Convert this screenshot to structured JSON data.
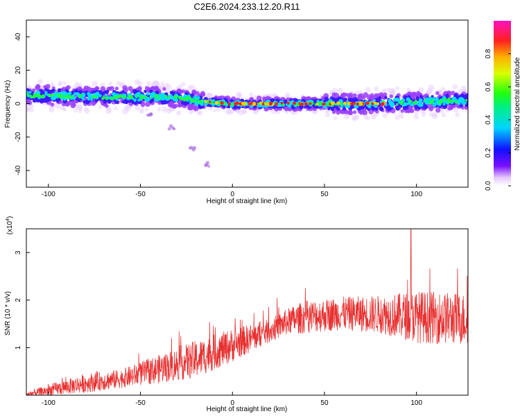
{
  "chart_data": [
    {
      "type": "heatmap",
      "title": "C2E6.2024.233.12.20.R11",
      "xlabel": "Height of straight line (km)",
      "ylabel": "Frequency (Hz)",
      "xlim": [
        -112,
        128
      ],
      "ylim": [
        -50,
        50
      ],
      "xticks": [
        -100,
        -50,
        0,
        50,
        100
      ],
      "yticks": [
        40,
        20,
        0,
        -20,
        -40
      ],
      "colorbar": {
        "label": "Normalized spectral amplitude",
        "range": [
          0.0,
          1.0
        ],
        "ticks": [
          0.0,
          0.2,
          0.4,
          0.6,
          0.8
        ]
      },
      "ridge": {
        "x": [
          -112,
          -100,
          -80,
          -60,
          -40,
          -25,
          -15,
          0,
          20,
          40,
          60,
          80,
          100,
          128
        ],
        "y": [
          5,
          5,
          4,
          4,
          4,
          3,
          1,
          0,
          0,
          0,
          0,
          0,
          1,
          2
        ]
      },
      "outliers": [
        {
          "x": -45,
          "y": -8
        },
        {
          "x": -33,
          "y": -14
        },
        {
          "x": -22,
          "y": -27
        },
        {
          "x": -14,
          "y": -37
        }
      ],
      "grid": false
    },
    {
      "type": "line",
      "xlabel": "Height of straight line (km)",
      "ylabel": "SNR (10 * v/v)",
      "yscale_label": "(x10",
      "yscale_exp": "4",
      "xlim": [
        -112,
        128
      ],
      "ylim": [
        0,
        3.5
      ],
      "xticks": [
        -100,
        -50,
        0,
        50,
        100
      ],
      "yticks": [
        1,
        2,
        3
      ],
      "series": [
        {
          "color": "#e83030",
          "trend_x": [
            -112,
            -100,
            -80,
            -60,
            -40,
            -20,
            0,
            20,
            30,
            40,
            60,
            80,
            100,
            128
          ],
          "trend_y": [
            0.02,
            0.1,
            0.25,
            0.35,
            0.55,
            0.75,
            1.05,
            1.35,
            1.55,
            1.65,
            1.72,
            1.7,
            1.65,
            1.6
          ],
          "noise_amp": [
            0.05,
            0.12,
            0.2,
            0.2,
            0.3,
            0.4,
            0.35,
            0.25,
            0.28,
            0.35,
            0.35,
            0.4,
            0.55,
            0.55
          ],
          "peak_x": 97,
          "peak_y": 3.5
        }
      ],
      "grid": false
    }
  ]
}
